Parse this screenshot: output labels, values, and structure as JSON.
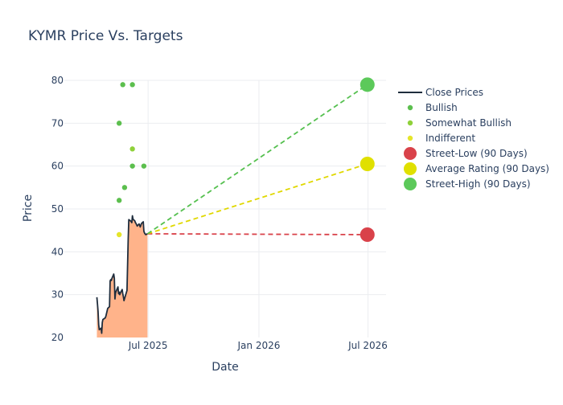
{
  "chart_data": {
    "type": "line",
    "title": "KYMR Price Vs. Targets",
    "xlabel": "Date",
    "ylabel": "Price",
    "ylim": [
      20,
      80
    ],
    "xlim": [
      "2025-02-12",
      "2026-07-31"
    ],
    "yticks": [
      20,
      30,
      40,
      50,
      60,
      70,
      80
    ],
    "xticks": [
      {
        "date": "2025-07-01",
        "label": "Jul 2025"
      },
      {
        "date": "2026-01-01",
        "label": "Jan 2026"
      },
      {
        "date": "2026-07-01",
        "label": "Jul 2026"
      }
    ],
    "grid": true,
    "legend_position": "right",
    "close_prices": {
      "name": "Close Prices",
      "color": "#1f2d3d",
      "fill_color": "#ffb38a",
      "x": [
        "2025-04-07",
        "2025-04-08",
        "2025-04-09",
        "2025-04-10",
        "2025-04-11",
        "2025-04-14",
        "2025-04-15",
        "2025-04-16",
        "2025-04-17",
        "2025-04-21",
        "2025-04-22",
        "2025-04-23",
        "2025-04-24",
        "2025-04-25",
        "2025-04-28",
        "2025-04-29",
        "2025-04-30",
        "2025-05-01",
        "2025-05-02",
        "2025-05-05",
        "2025-05-06",
        "2025-05-07",
        "2025-05-08",
        "2025-05-09",
        "2025-05-12",
        "2025-05-13",
        "2025-05-14",
        "2025-05-15",
        "2025-05-16",
        "2025-05-19",
        "2025-05-20",
        "2025-05-21",
        "2025-05-22",
        "2025-05-23",
        "2025-05-27",
        "2025-05-28",
        "2025-05-29",
        "2025-05-30",
        "2025-06-02",
        "2025-06-03",
        "2025-06-04",
        "2025-06-05",
        "2025-06-06",
        "2025-06-09",
        "2025-06-10",
        "2025-06-11",
        "2025-06-12",
        "2025-06-13",
        "2025-06-16",
        "2025-06-17",
        "2025-06-18",
        "2025-06-20",
        "2025-06-23",
        "2025-06-24",
        "2025-06-25",
        "2025-06-26",
        "2025-06-27",
        "2025-06-30"
      ],
      "y": [
        29.4,
        27.8,
        26.0,
        23.0,
        21.8,
        22.2,
        21.0,
        23.5,
        24.2,
        24.6,
        25.0,
        25.6,
        26.2,
        26.8,
        27.2,
        33.2,
        33.5,
        33.3,
        33.8,
        34.8,
        33.8,
        29.0,
        30.4,
        30.8,
        31.8,
        30.2,
        30.6,
        30.0,
        30.4,
        31.2,
        30.2,
        29.5,
        28.6,
        29.1,
        31.0,
        37.0,
        43.0,
        47.5,
        47.2,
        47.0,
        46.8,
        48.4,
        47.6,
        47.2,
        46.8,
        46.6,
        46.3,
        46.0,
        46.5,
        46.2,
        45.8,
        46.6,
        47.0,
        44.8,
        44.4,
        44.2,
        44.0,
        44.2
      ]
    },
    "series": [
      {
        "name": "Bullish",
        "color": "#5cbf4e",
        "x": [
          "2025-05-20",
          "2025-06-05",
          "2025-05-14",
          "2025-06-05",
          "2025-05-23",
          "2025-05-14",
          "2025-06-24"
        ],
        "y": [
          79,
          79,
          70,
          60,
          55,
          52,
          60
        ]
      },
      {
        "name": "Somewhat Bullish",
        "color": "#8fd13a",
        "x": [
          "2025-06-05"
        ],
        "y": [
          64
        ]
      },
      {
        "name": "Indifferent",
        "color": "#e5e52a",
        "x": [
          "2025-05-14"
        ],
        "y": [
          44
        ]
      }
    ],
    "targets": [
      {
        "name": "Street-Low (90 Days)",
        "color": "#d9424a",
        "line_color": "#d9424a",
        "x": "2026-06-30",
        "y": 44
      },
      {
        "name": "Average Rating (90 Days)",
        "color": "#e0e000",
        "line_color": "#e0d800",
        "x": "2026-06-30",
        "y": 60.5
      },
      {
        "name": "Street-High (90 Days)",
        "color": "#5cc95a",
        "line_color": "#55c04f",
        "x": "2026-06-30",
        "y": 79
      }
    ],
    "target_line_start": {
      "x": "2025-06-30",
      "y": 44.2
    }
  }
}
